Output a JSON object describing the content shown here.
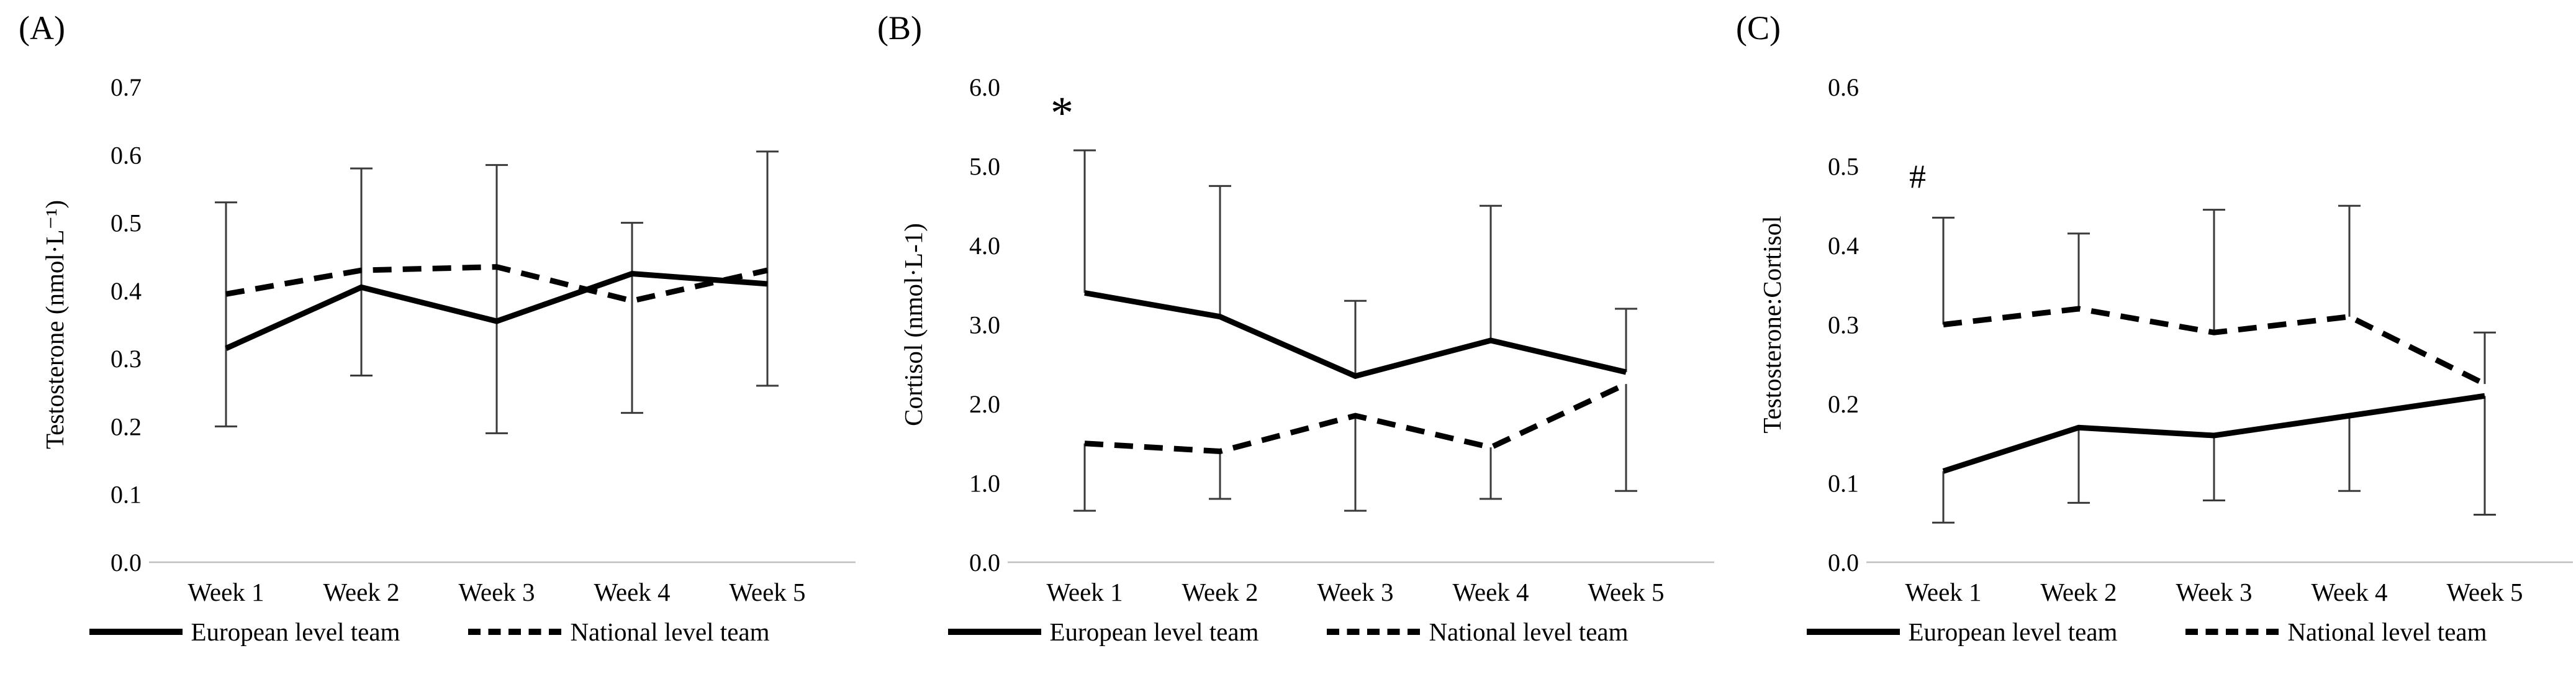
{
  "legend": {
    "european_label": "European level team",
    "national_label": "National level team"
  },
  "colors": {
    "series": "#000000",
    "error_bar": "#3a3a3a",
    "axis_line": "#bfbfbf",
    "text": "#000000"
  },
  "chart_data": [
    {
      "type": "line",
      "panel": "(A)",
      "ylabel": "Testosterone (nmol·L⁻¹)",
      "ylim": [
        0,
        0.7
      ],
      "grid": false,
      "legend_position": "bottom",
      "categories": [
        "Week 1",
        "Week 2",
        "Week 3",
        "Week 4",
        "Week 5"
      ],
      "yticks": [
        {
          "v": 0.0,
          "label": "0.0"
        },
        {
          "v": 0.1,
          "label": "0.1"
        },
        {
          "v": 0.2,
          "label": "0.2"
        },
        {
          "v": 0.3,
          "label": "0.3"
        },
        {
          "v": 0.4,
          "label": "0.4"
        },
        {
          "v": 0.5,
          "label": "0.5"
        },
        {
          "v": 0.6,
          "label": "0.6"
        },
        {
          "v": 0.7,
          "label": "0.7"
        }
      ],
      "series": [
        {
          "name": "European level team",
          "style": "solid",
          "values": [
            0.315,
            0.405,
            0.355,
            0.425,
            0.41
          ]
        },
        {
          "name": "National level team",
          "style": "dashed",
          "values": [
            0.395,
            0.43,
            0.435,
            0.385,
            0.43
          ]
        }
      ],
      "error_bars": {
        "mode": "span",
        "high": [
          0.53,
          0.58,
          0.585,
          0.5,
          0.605
        ],
        "low": [
          0.2,
          0.275,
          0.19,
          0.22,
          0.26
        ]
      },
      "annotation": null
    },
    {
      "type": "line",
      "panel": "(B)",
      "ylabel": "Cortisol (nmol·L-1)",
      "ylim": [
        0,
        6.0
      ],
      "grid": false,
      "legend_position": "bottom",
      "categories": [
        "Week 1",
        "Week 2",
        "Week 3",
        "Week 4",
        "Week 5"
      ],
      "yticks": [
        {
          "v": 0.0,
          "label": "0.0"
        },
        {
          "v": 1.0,
          "label": "1.0"
        },
        {
          "v": 2.0,
          "label": "2.0"
        },
        {
          "v": 3.0,
          "label": "3.0"
        },
        {
          "v": 4.0,
          "label": "4.0"
        },
        {
          "v": 5.0,
          "label": "5.0"
        },
        {
          "v": 6.0,
          "label": "6.0"
        }
      ],
      "series": [
        {
          "name": "European level team",
          "style": "solid",
          "values": [
            3.4,
            3.1,
            2.35,
            2.8,
            2.4
          ]
        },
        {
          "name": "National level team",
          "style": "dashed",
          "values": [
            1.5,
            1.4,
            1.85,
            1.45,
            2.25
          ]
        }
      ],
      "error_bars": {
        "mode": "split",
        "upper_series": 0,
        "high": [
          5.2,
          4.75,
          3.3,
          4.5,
          3.2
        ],
        "lower_series": 1,
        "low": [
          0.65,
          0.8,
          0.65,
          0.8,
          0.9
        ]
      },
      "annotation": {
        "text": "*",
        "week_index": 0,
        "y": 5.62
      }
    },
    {
      "type": "line",
      "panel": "(C)",
      "ylabel": "Testosterone:Cortisol",
      "ylim": [
        0,
        0.6
      ],
      "grid": false,
      "legend_position": "bottom",
      "categories": [
        "Week 1",
        "Week 2",
        "Week 3",
        "Week 4",
        "Week 5"
      ],
      "yticks": [
        {
          "v": 0.0,
          "label": "0.0"
        },
        {
          "v": 0.1,
          "label": "0.1"
        },
        {
          "v": 0.2,
          "label": "0.2"
        },
        {
          "v": 0.3,
          "label": "0.3"
        },
        {
          "v": 0.4,
          "label": "0.4"
        },
        {
          "v": 0.5,
          "label": "0.5"
        },
        {
          "v": 0.6,
          "label": "0.6"
        }
      ],
      "series": [
        {
          "name": "European level team",
          "style": "solid",
          "values": [
            0.115,
            0.17,
            0.16,
            0.185,
            0.21
          ]
        },
        {
          "name": "National level team",
          "style": "dashed",
          "values": [
            0.3,
            0.32,
            0.29,
            0.31,
            0.225
          ]
        }
      ],
      "error_bars": {
        "mode": "split",
        "upper_series": 1,
        "high": [
          0.435,
          0.415,
          0.445,
          0.45,
          0.29
        ],
        "lower_series": 0,
        "low": [
          0.05,
          0.075,
          0.078,
          0.09,
          0.06
        ]
      },
      "annotation": {
        "text": "#",
        "week_index": 0,
        "y": 0.487
      }
    }
  ]
}
